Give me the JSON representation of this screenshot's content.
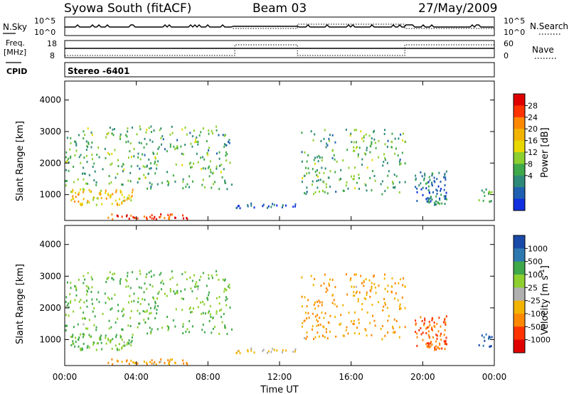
{
  "header": {
    "title": "Syowa South (fitACF)",
    "beam": "Beam 03",
    "date": "27/May/2009"
  },
  "status_panels": {
    "nsky_label": "N.Sky",
    "nsearch_label": "N.Search",
    "freq_label_line1": "Freq.",
    "freq_label_line2": "[MHz]",
    "nave_label": "Nave",
    "cpid_label": "CPID",
    "cpid_value": "Stereo -6401",
    "noise_ticks": [
      "10^5",
      "10^0"
    ],
    "freq_ticks": [
      "18",
      "8"
    ],
    "nave_ticks": [
      "60",
      "0"
    ]
  },
  "power_scale": {
    "label": "Power [dB]",
    "ticks": [
      "28",
      "24",
      "20",
      "16",
      "12",
      "8",
      "4"
    ],
    "colors": [
      "#e00000",
      "#ff3300",
      "#ff8800",
      "#f2b400",
      "#e8d800",
      "#8ccf2e",
      "#3ea84a",
      "#2e8a78",
      "#2060b0",
      "#1030e0"
    ]
  },
  "velocity_scale": {
    "label": "Velocity [m s^-1]",
    "label_main": "Velocity [m s",
    "label_sup": "-1",
    "label_end": "]",
    "ticks": [
      "1000",
      "500",
      "100",
      "25",
      "-25",
      "-100",
      "-500",
      "-1000"
    ],
    "colors": [
      "#1a4aa8",
      "#2e78b0",
      "#3ea84a",
      "#8ccf2e",
      "#b0b0b0",
      "#f2b400",
      "#ff8800",
      "#ff3300",
      "#e00000"
    ]
  },
  "chart_data": {
    "type": "heatmap",
    "xlabel": "Time UT",
    "ylabel": "Slant Range [km]",
    "x_ticks": [
      "00:00",
      "04:00",
      "08:00",
      "12:00",
      "16:00",
      "20:00",
      "00:00"
    ],
    "y_ticks": [
      "1000",
      "2000",
      "3000",
      "4000"
    ],
    "xlim_hours": [
      0,
      24
    ],
    "ylim_km": [
      180,
      4600
    ],
    "panels": [
      "power",
      "velocity"
    ],
    "echo_regions": [
      {
        "hours": [
          0.3,
          3.8
        ],
        "km": [
          700,
          1200
        ],
        "power_db": 20,
        "velocity": 100
      },
      {
        "hours": [
          2.0,
          7.2
        ],
        "km": [
          250,
          420
        ],
        "power_db": 28,
        "velocity": -100
      },
      {
        "hours": [
          9.5,
          13.0
        ],
        "km": [
          600,
          750
        ],
        "power_db": 4,
        "velocity": -25
      },
      {
        "hours": [
          19.5,
          21.3
        ],
        "km": [
          700,
          1800
        ],
        "power_db": 8,
        "velocity": -500
      },
      {
        "hours": [
          23.1,
          23.9
        ],
        "km": [
          800,
          1200
        ],
        "power_db": 12,
        "velocity": 1000
      },
      {
        "hours": [
          0.0,
          9.3
        ],
        "km": [
          1200,
          3200
        ],
        "power_db": 12,
        "velocity": 100
      },
      {
        "hours": [
          13.2,
          19.0
        ],
        "km": [
          1000,
          3100
        ],
        "power_db": 12,
        "velocity": -100
      }
    ]
  }
}
